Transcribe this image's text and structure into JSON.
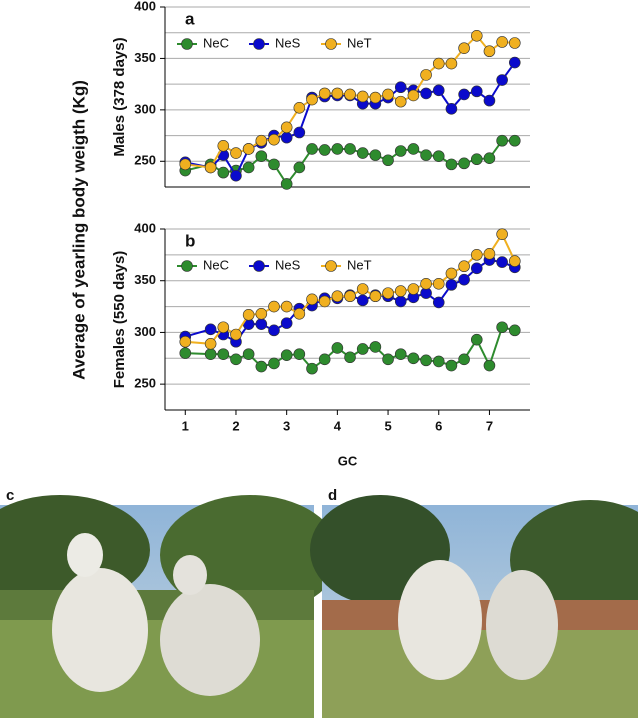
{
  "figure": {
    "ylabel": "Average of yearling body weigth (Kg)",
    "photo_labels": [
      "c",
      "d"
    ]
  },
  "chart_data": [
    {
      "type": "line",
      "title": "a",
      "ylabel": "Males (378 days)",
      "x": [
        1,
        1.5,
        1.75,
        2,
        2.25,
        2.5,
        2.75,
        3,
        3.25,
        3.5,
        3.75,
        4,
        4.25,
        4.5,
        4.75,
        5,
        5.25,
        5.5,
        5.75,
        6,
        6.25,
        6.5,
        6.75,
        7,
        7.25,
        7.5
      ],
      "series": [
        {
          "name": "NeC",
          "color": "#2e8b2e",
          "values": [
            241,
            247,
            239,
            241,
            244,
            255,
            247,
            228,
            244,
            262,
            261,
            262,
            262,
            258,
            256,
            251,
            260,
            262,
            256,
            255,
            247,
            248,
            252,
            253,
            270,
            270
          ]
        },
        {
          "name": "NeS",
          "color": "#0a0acc",
          "values": [
            249,
            244,
            256,
            236,
            262,
            268,
            275,
            273,
            278,
            312,
            313,
            314,
            314,
            306,
            306,
            312,
            322,
            319,
            316,
            319,
            301,
            315,
            318,
            309,
            329,
            346
          ]
        },
        {
          "name": "NeT",
          "color": "#f0b020",
          "values": [
            247,
            244,
            265,
            258,
            262,
            270,
            271,
            283,
            302,
            310,
            316,
            316,
            315,
            313,
            312,
            315,
            308,
            314,
            334,
            345,
            345,
            360,
            372,
            357,
            366,
            365
          ]
        }
      ],
      "xlim": [
        0.6,
        7.8
      ],
      "ylim": [
        225,
        400
      ],
      "yticks": [
        250,
        300,
        350,
        400
      ],
      "grid": true,
      "minor_grid": [
        275,
        325,
        375
      ],
      "legend": "top-left"
    },
    {
      "type": "line",
      "title": "b",
      "ylabel": "Females (550 days)",
      "xlabel": "GC",
      "x": [
        1,
        1.5,
        1.75,
        2,
        2.25,
        2.5,
        2.75,
        3,
        3.25,
        3.5,
        3.75,
        4,
        4.25,
        4.5,
        4.75,
        5,
        5.25,
        5.5,
        5.75,
        6,
        6.25,
        6.5,
        6.75,
        7,
        7.25,
        7.5
      ],
      "series": [
        {
          "name": "NeC",
          "color": "#2e8b2e",
          "values": [
            280,
            279,
            279,
            274,
            279,
            267,
            270,
            278,
            279,
            265,
            274,
            285,
            276,
            284,
            286,
            274,
            279,
            275,
            273,
            272,
            268,
            274,
            293,
            268,
            305,
            302
          ]
        },
        {
          "name": "NeS",
          "color": "#0a0acc",
          "values": [
            296,
            303,
            298,
            291,
            308,
            308,
            302,
            309,
            323,
            326,
            333,
            333,
            336,
            331,
            336,
            335,
            330,
            334,
            338,
            329,
            346,
            351,
            362,
            370,
            368,
            363
          ]
        },
        {
          "name": "NeT",
          "color": "#f0b020",
          "values": [
            291,
            289,
            305,
            298,
            317,
            318,
            325,
            325,
            318,
            332,
            330,
            335,
            335,
            342,
            335,
            338,
            340,
            342,
            347,
            347,
            357,
            364,
            375,
            376,
            395,
            369
          ]
        }
      ],
      "xlim": [
        0.6,
        7.8
      ],
      "xticks": [
        1,
        2,
        3,
        4,
        5,
        6,
        7
      ],
      "ylim": [
        225,
        400
      ],
      "yticks": [
        250,
        300,
        350,
        400
      ],
      "grid": true,
      "minor_grid": [
        275,
        325,
        375
      ],
      "legend": "top-left"
    }
  ]
}
